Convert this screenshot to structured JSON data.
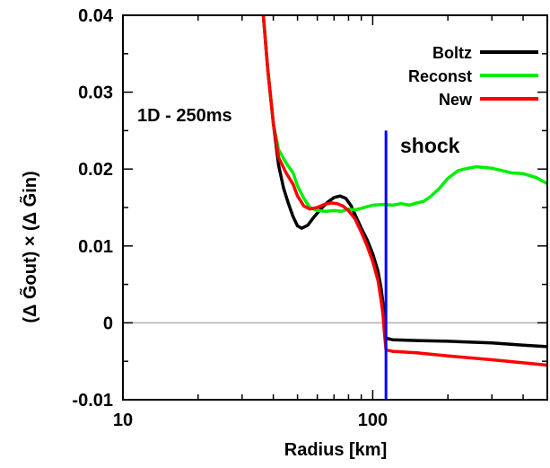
{
  "chart_data": {
    "type": "line",
    "annotation": "1D - 250ms",
    "xlabel": "Radius [km]",
    "ylabel": "(Δ G̃out) × (Δ G̃in)",
    "xscale": "log",
    "xlim": [
      10,
      500
    ],
    "ylim": [
      -0.01,
      0.04
    ],
    "x_ticks": [
      {
        "value": 10,
        "label": "10"
      },
      {
        "value": 100,
        "label": "100"
      }
    ],
    "y_ticks": [
      {
        "value": -0.01,
        "label": "-0.01"
      },
      {
        "value": 0,
        "label": "0"
      },
      {
        "value": 0.01,
        "label": "0.01"
      },
      {
        "value": 0.02,
        "label": "0.02"
      },
      {
        "value": 0.03,
        "label": "0.03"
      },
      {
        "value": 0.04,
        "label": "0.04"
      }
    ],
    "legend_position": "top-right",
    "zero_line": {
      "y": 0,
      "color": "#b0b0b0"
    },
    "shock": {
      "label": "shock",
      "x": 113,
      "y_range": [
        -0.01,
        0.025
      ],
      "color": "#0000ff"
    },
    "series": [
      {
        "name": "Boltz",
        "color": "#000000",
        "points": [
          [
            36.5,
            0.04
          ],
          [
            38,
            0.033
          ],
          [
            40,
            0.026
          ],
          [
            42,
            0.0205
          ],
          [
            44,
            0.0175
          ],
          [
            46,
            0.0155
          ],
          [
            48,
            0.0138
          ],
          [
            50,
            0.0126
          ],
          [
            52,
            0.0123
          ],
          [
            55,
            0.0127
          ],
          [
            58,
            0.0137
          ],
          [
            62,
            0.0148
          ],
          [
            66,
            0.0157
          ],
          [
            70,
            0.0163
          ],
          [
            74,
            0.0165
          ],
          [
            78,
            0.0162
          ],
          [
            82,
            0.0152
          ],
          [
            86,
            0.0137
          ],
          [
            90,
            0.0123
          ],
          [
            95,
            0.0108
          ],
          [
            100,
            0.009
          ],
          [
            105,
            0.0067
          ],
          [
            108,
            0.0045
          ],
          [
            110,
            0.0025
          ],
          [
            111.5,
            0.0
          ],
          [
            112.5,
            -0.0015
          ],
          [
            113,
            -0.002
          ],
          [
            120,
            -0.0022
          ],
          [
            150,
            -0.0023
          ],
          [
            200,
            -0.0024
          ],
          [
            300,
            -0.0026
          ],
          [
            400,
            -0.0029
          ],
          [
            500,
            -0.0031
          ]
        ]
      },
      {
        "name": "Reconst",
        "color": "#00ee00",
        "points": [
          [
            36.5,
            0.04
          ],
          [
            38,
            0.033
          ],
          [
            40,
            0.026
          ],
          [
            42,
            0.0225
          ],
          [
            45,
            0.0208
          ],
          [
            48,
            0.0195
          ],
          [
            50,
            0.0178
          ],
          [
            53,
            0.0162
          ],
          [
            56,
            0.015
          ],
          [
            60,
            0.0146
          ],
          [
            65,
            0.0145
          ],
          [
            70,
            0.0146
          ],
          [
            75,
            0.0145
          ],
          [
            80,
            0.0148
          ],
          [
            85,
            0.0147
          ],
          [
            90,
            0.0149
          ],
          [
            95,
            0.0151
          ],
          [
            100,
            0.0153
          ],
          [
            110,
            0.0154
          ],
          [
            120,
            0.0153
          ],
          [
            130,
            0.0155
          ],
          [
            140,
            0.0153
          ],
          [
            150,
            0.0156
          ],
          [
            160,
            0.0158
          ],
          [
            170,
            0.0164
          ],
          [
            185,
            0.0175
          ],
          [
            200,
            0.0188
          ],
          [
            220,
            0.0198
          ],
          [
            240,
            0.0201
          ],
          [
            260,
            0.0203
          ],
          [
            280,
            0.0202
          ],
          [
            300,
            0.0201
          ],
          [
            330,
            0.0198
          ],
          [
            360,
            0.0195
          ],
          [
            400,
            0.0194
          ],
          [
            450,
            0.0189
          ],
          [
            500,
            0.0181
          ]
        ]
      },
      {
        "name": "New",
        "color": "#ff0000",
        "points": [
          [
            36.5,
            0.04
          ],
          [
            38,
            0.033
          ],
          [
            40,
            0.026
          ],
          [
            42,
            0.0215
          ],
          [
            45,
            0.0195
          ],
          [
            48,
            0.018
          ],
          [
            50,
            0.0165
          ],
          [
            53,
            0.0152
          ],
          [
            56,
            0.0148
          ],
          [
            60,
            0.015
          ],
          [
            64,
            0.0154
          ],
          [
            68,
            0.0156
          ],
          [
            72,
            0.0155
          ],
          [
            76,
            0.0152
          ],
          [
            80,
            0.0146
          ],
          [
            85,
            0.0135
          ],
          [
            90,
            0.0118
          ],
          [
            95,
            0.01
          ],
          [
            100,
            0.008
          ],
          [
            105,
            0.0055
          ],
          [
            108,
            0.003
          ],
          [
            110,
            0.001
          ],
          [
            111.5,
            -0.0015
          ],
          [
            113,
            -0.0035
          ],
          [
            120,
            -0.0037
          ],
          [
            150,
            -0.0039
          ],
          [
            200,
            -0.0043
          ],
          [
            300,
            -0.0048
          ],
          [
            400,
            -0.0052
          ],
          [
            500,
            -0.0055
          ]
        ]
      }
    ]
  }
}
